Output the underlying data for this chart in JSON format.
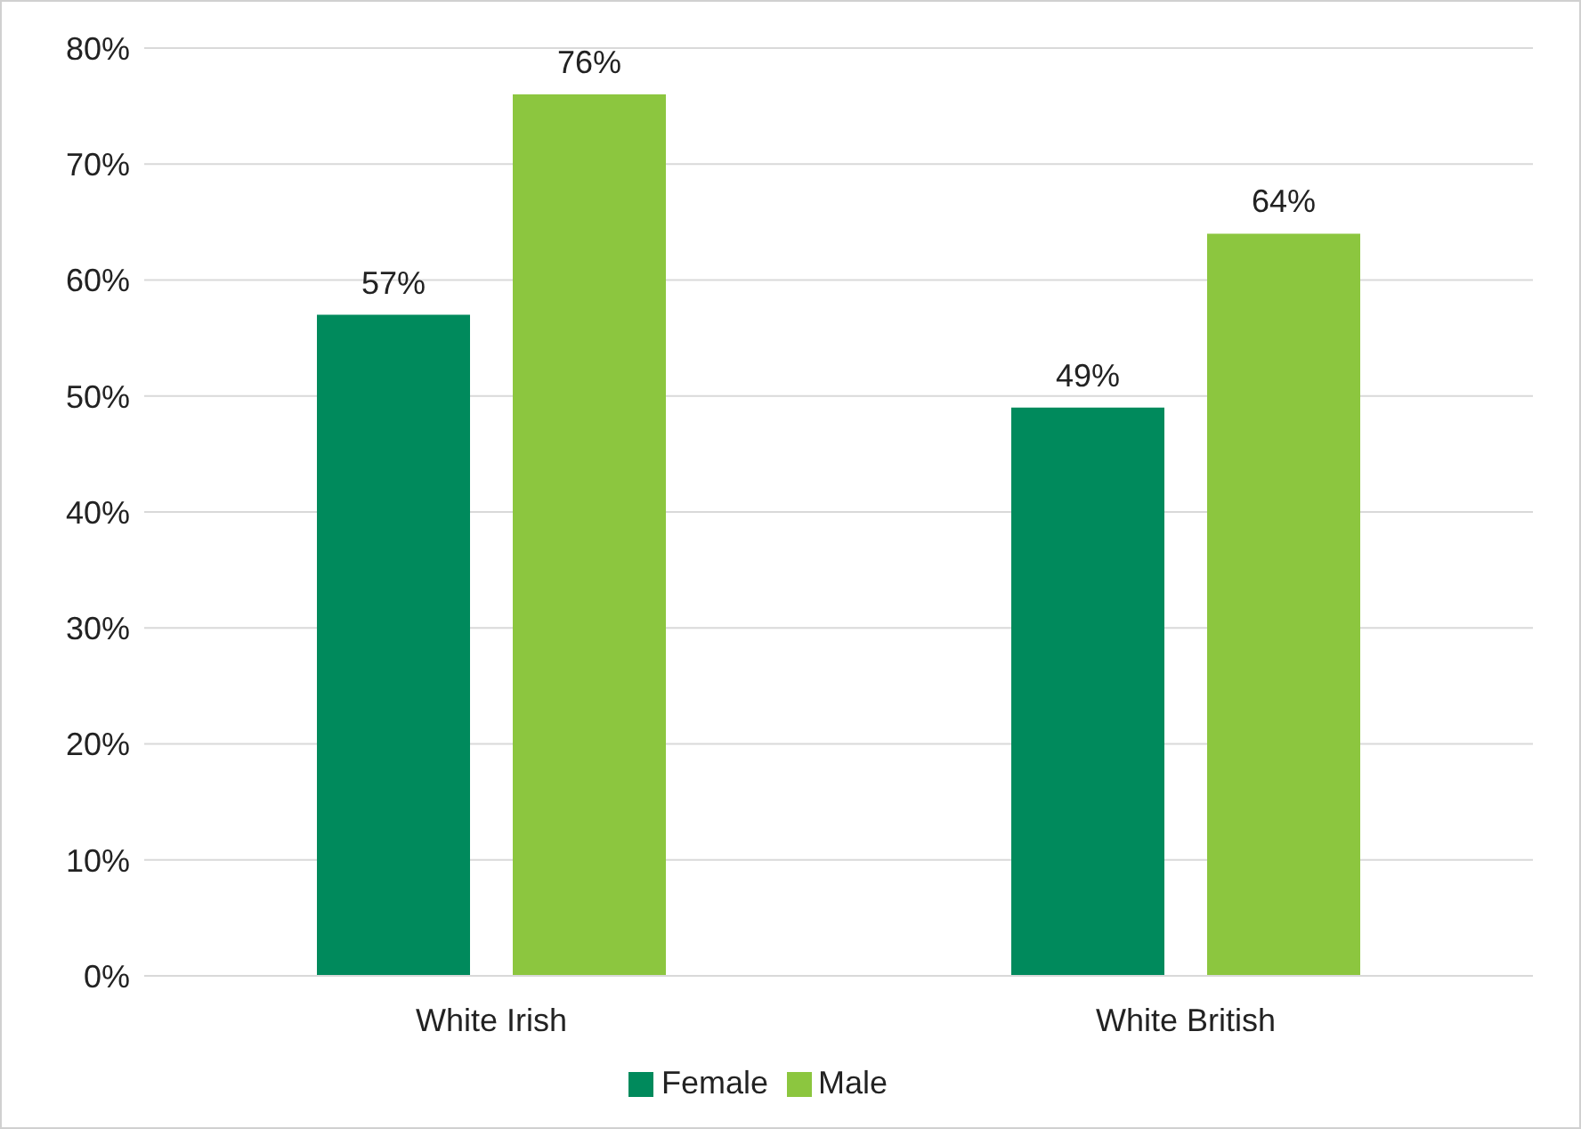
{
  "chart_data": {
    "type": "bar",
    "categories": [
      "White Irish",
      "White British"
    ],
    "series": [
      {
        "name": "Female",
        "color": "#008a5c",
        "values": [
          57,
          49
        ],
        "value_labels": [
          "57%",
          "49%"
        ]
      },
      {
        "name": "Male",
        "color": "#8cc63f",
        "values": [
          76,
          64
        ],
        "value_labels": [
          "76%",
          "64%"
        ]
      }
    ],
    "ylim": [
      0,
      80
    ],
    "yticks": [
      {
        "value": 0,
        "label": "0%"
      },
      {
        "value": 10,
        "label": "10%"
      },
      {
        "value": 20,
        "label": "20%"
      },
      {
        "value": 30,
        "label": "30%"
      },
      {
        "value": 40,
        "label": "40%"
      },
      {
        "value": 50,
        "label": "50%"
      },
      {
        "value": 60,
        "label": "60%"
      },
      {
        "value": 70,
        "label": "70%"
      },
      {
        "value": 80,
        "label": "80%"
      }
    ],
    "grid": "y",
    "legend": "bottom"
  }
}
